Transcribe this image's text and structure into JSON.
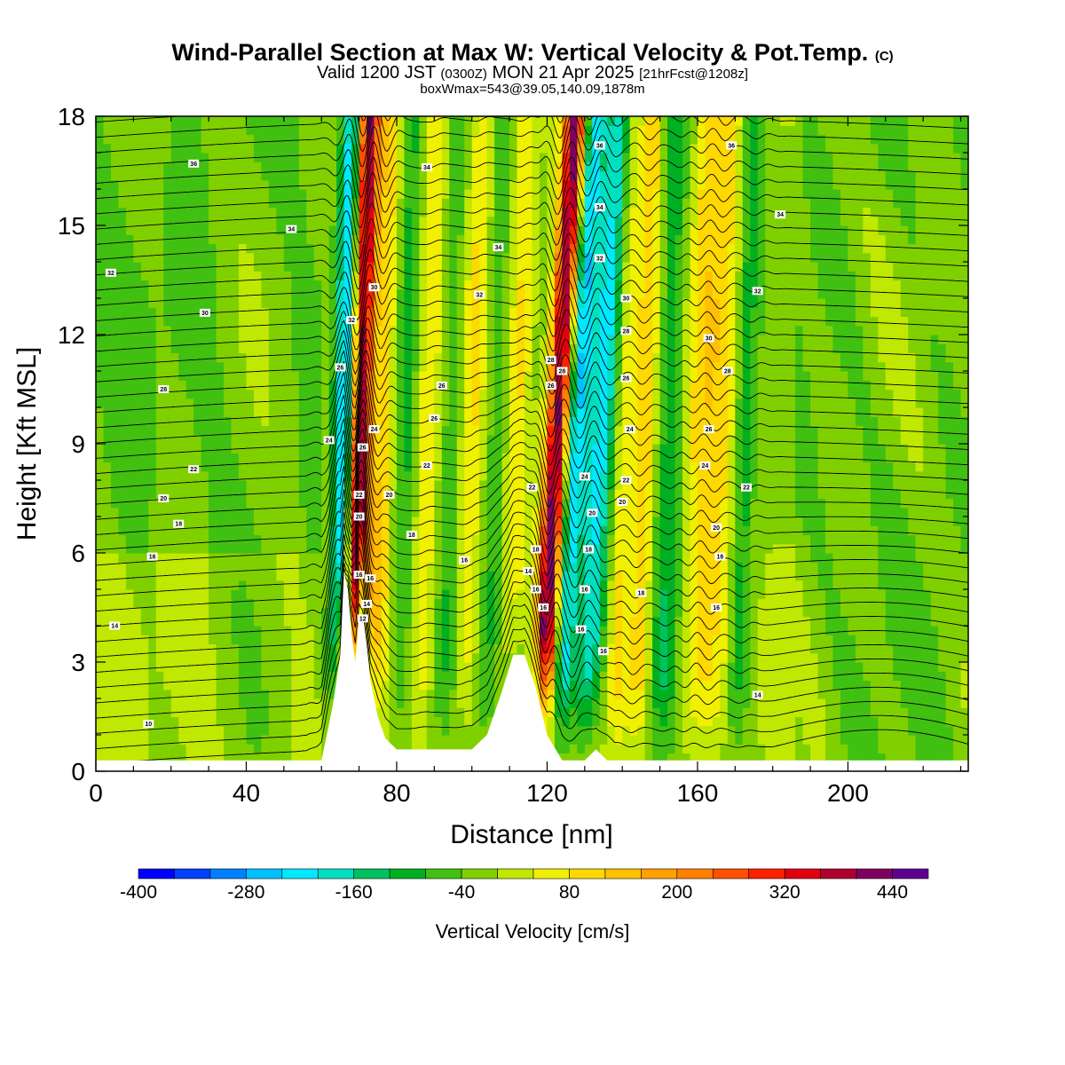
{
  "header": {
    "title_main": "Wind-Parallel Section at Max W: Vertical Velocity & Pot.Temp.",
    "title_copyright": "(C)",
    "valid_prefix": "Valid 1200 JST",
    "valid_z": "(0300Z)",
    "valid_date": "MON 21 Apr 2025",
    "valid_fcst": "[21hrFcst@1208z]",
    "box_info": "boxWmax=543@39.05,140.09,1878m"
  },
  "chart_data": {
    "type": "heatmap",
    "xlabel": "Distance [nm]",
    "ylabel": "Height [Kft MSL]",
    "xlim": [
      0,
      232
    ],
    "ylim": [
      0,
      18
    ],
    "x_ticks": [
      0,
      40,
      80,
      120,
      160,
      200
    ],
    "y_ticks": [
      0,
      3,
      6,
      9,
      12,
      15,
      18
    ],
    "grid": false,
    "colorbar": {
      "title": "Vertical Velocity [cm/s]",
      "levels": [
        -400,
        -360,
        -320,
        -280,
        -240,
        -200,
        -160,
        -120,
        -80,
        -40,
        0,
        40,
        80,
        120,
        160,
        200,
        240,
        280,
        320,
        360,
        400,
        440,
        480,
        520
      ],
      "tick_values": [
        -400,
        -280,
        -160,
        -40,
        80,
        200,
        320,
        440
      ],
      "colors": [
        "#0000ff",
        "#0040ff",
        "#0080ff",
        "#00c0ff",
        "#00e8ff",
        "#00e0c0",
        "#00c060",
        "#00b020",
        "#40c010",
        "#80d000",
        "#c0e800",
        "#f0f000",
        "#ffd800",
        "#ffc000",
        "#ffa000",
        "#ff8000",
        "#ff5000",
        "#ff2000",
        "#e00010",
        "#b00030",
        "#800060",
        "#600090"
      ]
    },
    "wave_bands": [
      {
        "x": 70,
        "w_peak": 440,
        "width_nm": 3
      },
      {
        "x": 66,
        "w_peak": -260,
        "width_nm": 3
      },
      {
        "x": 76,
        "w_peak": 120,
        "width_nm": 3
      },
      {
        "x": 82,
        "w_peak": -80,
        "width_nm": 3
      },
      {
        "x": 88,
        "w_peak": 80,
        "width_nm": 3
      },
      {
        "x": 94,
        "w_peak": -60,
        "width_nm": 3
      },
      {
        "x": 100,
        "w_peak": 80,
        "width_nm": 3
      },
      {
        "x": 106,
        "w_peak": -60,
        "width_nm": 3
      },
      {
        "x": 112,
        "w_peak": 90,
        "width_nm": 3
      },
      {
        "x": 122,
        "w_peak": 440,
        "width_nm": 3
      },
      {
        "x": 127,
        "w_peak": -220,
        "width_nm": 3
      },
      {
        "x": 134,
        "w_peak": -200,
        "width_nm": 4
      },
      {
        "x": 140,
        "w_peak": 100,
        "width_nm": 3
      },
      {
        "x": 146,
        "w_peak": 120,
        "width_nm": 3
      },
      {
        "x": 152,
        "w_peak": -100,
        "width_nm": 4
      },
      {
        "x": 160,
        "w_peak": 80,
        "width_nm": 4
      },
      {
        "x": 166,
        "w_peak": 100,
        "width_nm": 5
      },
      {
        "x": 172,
        "w_peak": -100,
        "width_nm": 3
      }
    ],
    "terrain": [
      [
        56,
        0
      ],
      [
        60,
        0.3
      ],
      [
        63,
        1.8
      ],
      [
        65,
        3.2
      ],
      [
        66,
        5.5
      ],
      [
        67,
        5.0
      ],
      [
        68,
        3.8
      ],
      [
        69,
        3.0
      ],
      [
        70,
        4.3
      ],
      [
        71,
        4.3
      ],
      [
        72,
        3.5
      ],
      [
        73,
        2.5
      ],
      [
        75,
        1.5
      ],
      [
        77,
        0.9
      ],
      [
        80,
        0.6
      ],
      [
        100,
        0.6
      ],
      [
        104,
        1.0
      ],
      [
        108,
        2.2
      ],
      [
        111,
        3.2
      ],
      [
        114,
        3.2
      ],
      [
        117,
        2.3
      ],
      [
        120,
        1.0
      ],
      [
        124,
        0.3
      ],
      [
        130,
        0.3
      ],
      [
        133,
        0.6
      ],
      [
        136,
        0.3
      ],
      [
        138,
        0
      ]
    ],
    "theta_contour_labels": [
      {
        "x": 26,
        "y": 16.7,
        "text": "36"
      },
      {
        "x": 52,
        "y": 14.9,
        "text": "34"
      },
      {
        "x": 4,
        "y": 13.7,
        "text": "32"
      },
      {
        "x": 29,
        "y": 12.6,
        "text": "30"
      },
      {
        "x": 18,
        "y": 10.5,
        "text": "28"
      },
      {
        "x": 62,
        "y": 9.1,
        "text": "24"
      },
      {
        "x": 26,
        "y": 8.3,
        "text": "22"
      },
      {
        "x": 18,
        "y": 7.5,
        "text": "20"
      },
      {
        "x": 22,
        "y": 6.8,
        "text": "18"
      },
      {
        "x": 15,
        "y": 5.9,
        "text": "16"
      },
      {
        "x": 5,
        "y": 4.0,
        "text": "14"
      },
      {
        "x": 14,
        "y": 1.3,
        "text": "10"
      },
      {
        "x": 88,
        "y": 16.6,
        "text": "34"
      },
      {
        "x": 107,
        "y": 14.4,
        "text": "34"
      },
      {
        "x": 102,
        "y": 13.1,
        "text": "32"
      },
      {
        "x": 74,
        "y": 13.3,
        "text": "30"
      },
      {
        "x": 68,
        "y": 12.4,
        "text": "32"
      },
      {
        "x": 65,
        "y": 11.1,
        "text": "26"
      },
      {
        "x": 92,
        "y": 10.6,
        "text": "26"
      },
      {
        "x": 90,
        "y": 9.7,
        "text": "26"
      },
      {
        "x": 88,
        "y": 8.4,
        "text": "22"
      },
      {
        "x": 78,
        "y": 7.6,
        "text": "20"
      },
      {
        "x": 84,
        "y": 6.5,
        "text": "18"
      },
      {
        "x": 98,
        "y": 5.8,
        "text": "16"
      },
      {
        "x": 74,
        "y": 9.4,
        "text": "24"
      },
      {
        "x": 71,
        "y": 8.9,
        "text": "26"
      },
      {
        "x": 70,
        "y": 7.6,
        "text": "22"
      },
      {
        "x": 70,
        "y": 7.0,
        "text": "20"
      },
      {
        "x": 70,
        "y": 5.4,
        "text": "16"
      },
      {
        "x": 73,
        "y": 5.3,
        "text": "16"
      },
      {
        "x": 72,
        "y": 4.6,
        "text": "14"
      },
      {
        "x": 71,
        "y": 4.2,
        "text": "12"
      },
      {
        "x": 115,
        "y": 5.5,
        "text": "14"
      },
      {
        "x": 116,
        "y": 7.8,
        "text": "22"
      },
      {
        "x": 117,
        "y": 6.1,
        "text": "18"
      },
      {
        "x": 117,
        "y": 5.0,
        "text": "16"
      },
      {
        "x": 119,
        "y": 4.5,
        "text": "16"
      },
      {
        "x": 121,
        "y": 11.3,
        "text": "28"
      },
      {
        "x": 121,
        "y": 10.6,
        "text": "26"
      },
      {
        "x": 124,
        "y": 11.0,
        "text": "28"
      },
      {
        "x": 129,
        "y": 3.9,
        "text": "16"
      },
      {
        "x": 130,
        "y": 8.1,
        "text": "24"
      },
      {
        "x": 132,
        "y": 7.1,
        "text": "20"
      },
      {
        "x": 131,
        "y": 6.1,
        "text": "18"
      },
      {
        "x": 130,
        "y": 5.0,
        "text": "16"
      },
      {
        "x": 135,
        "y": 3.3,
        "text": "16"
      },
      {
        "x": 134,
        "y": 17.2,
        "text": "36"
      },
      {
        "x": 134,
        "y": 15.5,
        "text": "34"
      },
      {
        "x": 134,
        "y": 14.1,
        "text": "32"
      },
      {
        "x": 141,
        "y": 13.0,
        "text": "30"
      },
      {
        "x": 141,
        "y": 12.1,
        "text": "28"
      },
      {
        "x": 141,
        "y": 10.8,
        "text": "26"
      },
      {
        "x": 142,
        "y": 9.4,
        "text": "24"
      },
      {
        "x": 141,
        "y": 8.0,
        "text": "22"
      },
      {
        "x": 140,
        "y": 7.4,
        "text": "20"
      },
      {
        "x": 145,
        "y": 4.9,
        "text": "18"
      },
      {
        "x": 169,
        "y": 17.2,
        "text": "36"
      },
      {
        "x": 182,
        "y": 15.3,
        "text": "34"
      },
      {
        "x": 176,
        "y": 13.2,
        "text": "32"
      },
      {
        "x": 163,
        "y": 11.9,
        "text": "30"
      },
      {
        "x": 168,
        "y": 11.0,
        "text": "28"
      },
      {
        "x": 163,
        "y": 9.4,
        "text": "26"
      },
      {
        "x": 162,
        "y": 8.4,
        "text": "24"
      },
      {
        "x": 173,
        "y": 7.8,
        "text": "22"
      },
      {
        "x": 165,
        "y": 6.7,
        "text": "20"
      },
      {
        "x": 166,
        "y": 5.9,
        "text": "16"
      },
      {
        "x": 165,
        "y": 4.5,
        "text": "16"
      },
      {
        "x": 176,
        "y": 2.1,
        "text": "14"
      }
    ]
  }
}
